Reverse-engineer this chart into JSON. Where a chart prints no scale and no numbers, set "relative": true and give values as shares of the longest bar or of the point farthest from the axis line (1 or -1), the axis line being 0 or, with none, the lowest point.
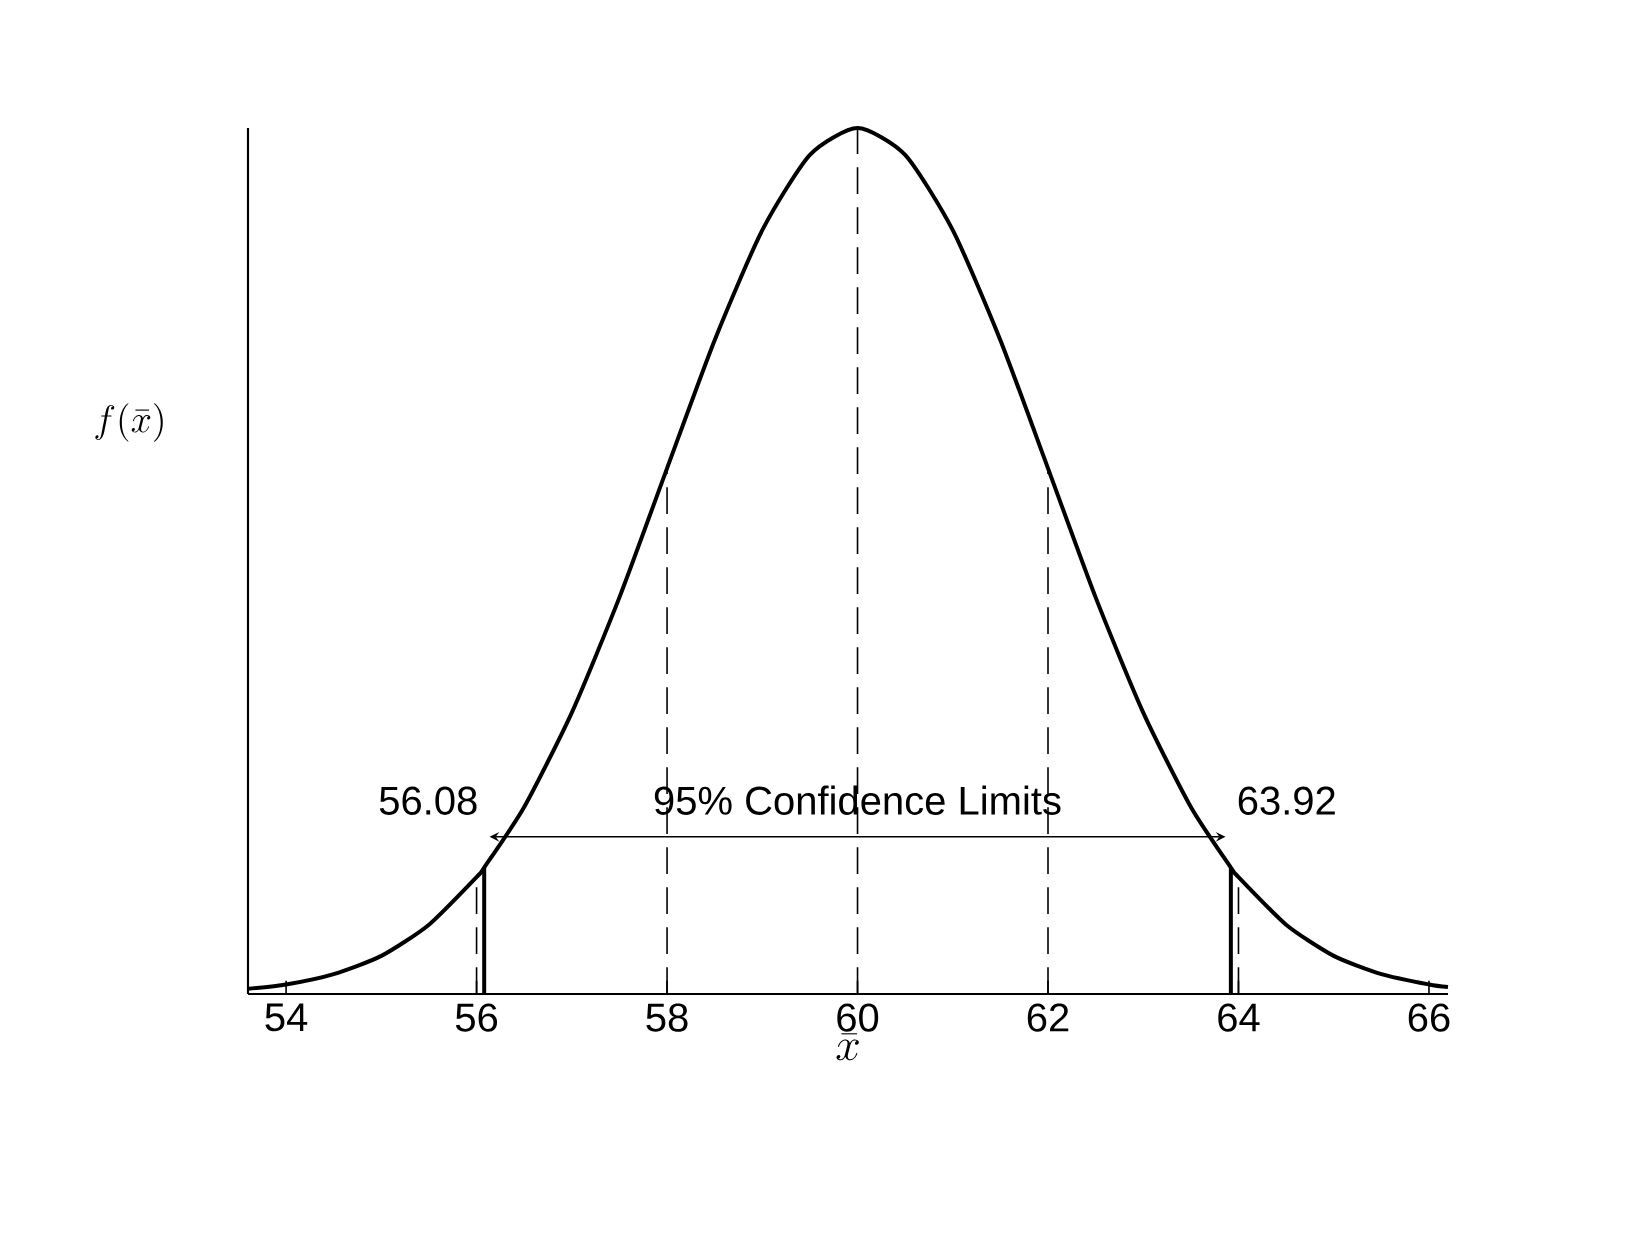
{
  "chart_data": {
    "type": "line",
    "xlabel": "\\bar{x}",
    "ylabel": "f(\\bar{x})",
    "relative": true,
    "xlim": [
      53.6,
      66.2
    ],
    "xticks": [
      54,
      56,
      58,
      60,
      62,
      64,
      66
    ],
    "series": [
      {
        "color": "#000000",
        "x": [
          53.6,
          54,
          54.5,
          55,
          55.5,
          56,
          56.08,
          56.5,
          57,
          57.5,
          58,
          58.5,
          59,
          59.5,
          60,
          60.5,
          61,
          61.5,
          62,
          62.5,
          63,
          63.5,
          63.92,
          64,
          64.5,
          65,
          65.5,
          66,
          66.2
        ],
        "values": [
          0.006,
          0.011,
          0.023,
          0.044,
          0.08,
          0.135,
          0.146,
          0.216,
          0.325,
          0.458,
          0.607,
          0.755,
          0.882,
          0.969,
          1,
          0.969,
          0.882,
          0.755,
          0.607,
          0.458,
          0.325,
          0.216,
          0.146,
          0.135,
          0.08,
          0.044,
          0.023,
          0.011,
          0.008
        ]
      }
    ],
    "ref_lines": [
      {
        "axis": "x",
        "value": 56,
        "line_style": "dashed"
      },
      {
        "axis": "x",
        "value": 58,
        "line_style": "dashed"
      },
      {
        "axis": "x",
        "value": 60,
        "line_style": "dashed"
      },
      {
        "axis": "x",
        "value": 62,
        "line_style": "dashed"
      },
      {
        "axis": "x",
        "value": 64,
        "line_style": "dashed"
      },
      {
        "axis": "x",
        "value": 56.08,
        "line_style": "solid",
        "label": "56.08"
      },
      {
        "axis": "x",
        "value": 63.92,
        "line_style": "solid",
        "label": "63.92"
      }
    ],
    "annotations": [
      {
        "text": "95% Confidence Limits",
        "x": 60,
        "y": 0.2
      }
    ]
  }
}
